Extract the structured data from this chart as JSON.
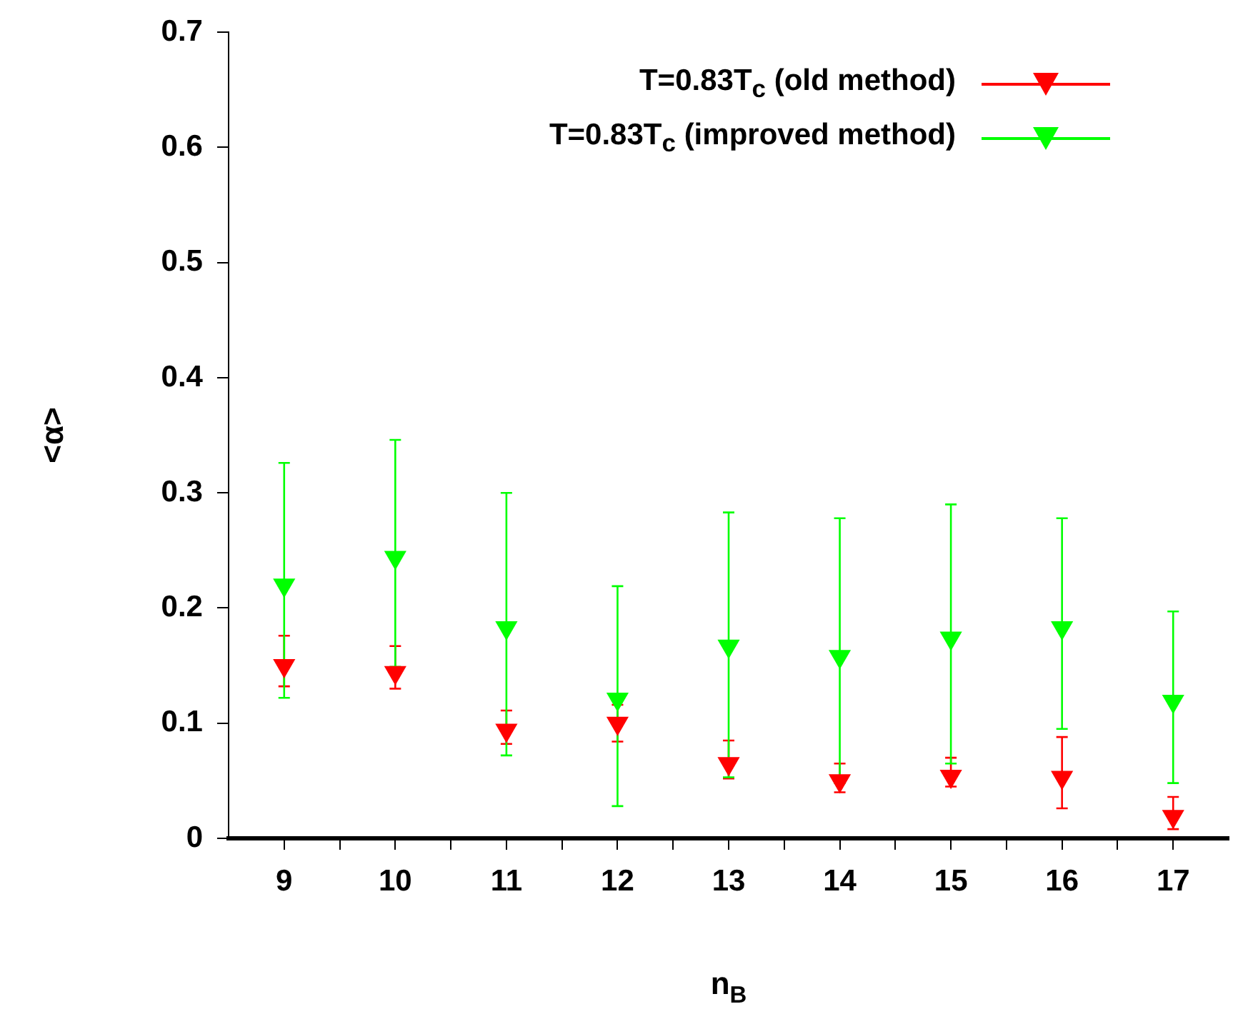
{
  "chart_data": {
    "type": "scatter",
    "xlabel": "n$_{B}$",
    "ylabel": "<α>",
    "x": [
      9,
      10,
      11,
      12,
      13,
      14,
      15,
      16,
      17
    ],
    "series": [
      {
        "name": "T=0.83T$_{c}$ (old method)",
        "color": "#ff0000",
        "values": [
          0.15,
          0.144,
          0.094,
          0.1,
          0.065,
          0.05,
          0.054,
          0.053,
          0.019
        ],
        "errors": [
          [
            0.132,
            0.176
          ],
          [
            0.13,
            0.167
          ],
          [
            0.082,
            0.111
          ],
          [
            0.084,
            0.116
          ],
          [
            0.052,
            0.085
          ],
          [
            0.04,
            0.065
          ],
          [
            0.045,
            0.07
          ],
          [
            0.026,
            0.088
          ],
          [
            0.008,
            0.036
          ]
        ]
      },
      {
        "name": "T=0.83T$_{c}$ (improved method)",
        "color": "#00ff00",
        "values": [
          0.22,
          0.244,
          0.183,
          0.121,
          0.167,
          0.158,
          0.174,
          0.183,
          0.119
        ],
        "errors": [
          [
            0.122,
            0.326
          ],
          [
            0.149,
            0.346
          ],
          [
            0.072,
            0.3
          ],
          [
            0.028,
            0.219
          ],
          [
            0.053,
            0.283
          ],
          [
            0.048,
            0.278
          ],
          [
            0.065,
            0.29
          ],
          [
            0.095,
            0.278
          ],
          [
            0.048,
            0.197
          ]
        ]
      }
    ],
    "xlim": [
      8.5,
      17.5
    ],
    "xticks": [
      9,
      {
        "value": 9.5,
        "label": null
      },
      10,
      {
        "value": 10.5,
        "label": null
      },
      11,
      {
        "value": 11.5,
        "label": null
      },
      12,
      {
        "value": 12.5,
        "label": null
      },
      13,
      {
        "value": 13.5,
        "label": null
      },
      14,
      {
        "value": 14.5,
        "label": null
      },
      15,
      {
        "value": 15.5,
        "label": null
      },
      16,
      {
        "value": 16.5,
        "label": null
      },
      17
    ],
    "ylim": [
      0,
      0.7
    ],
    "yticks": [
      0,
      0.1,
      0.2,
      0.3,
      0.4,
      0.5,
      0.6,
      0.7
    ],
    "grid": false,
    "legend": "top right",
    "marker": "triangle"
  }
}
